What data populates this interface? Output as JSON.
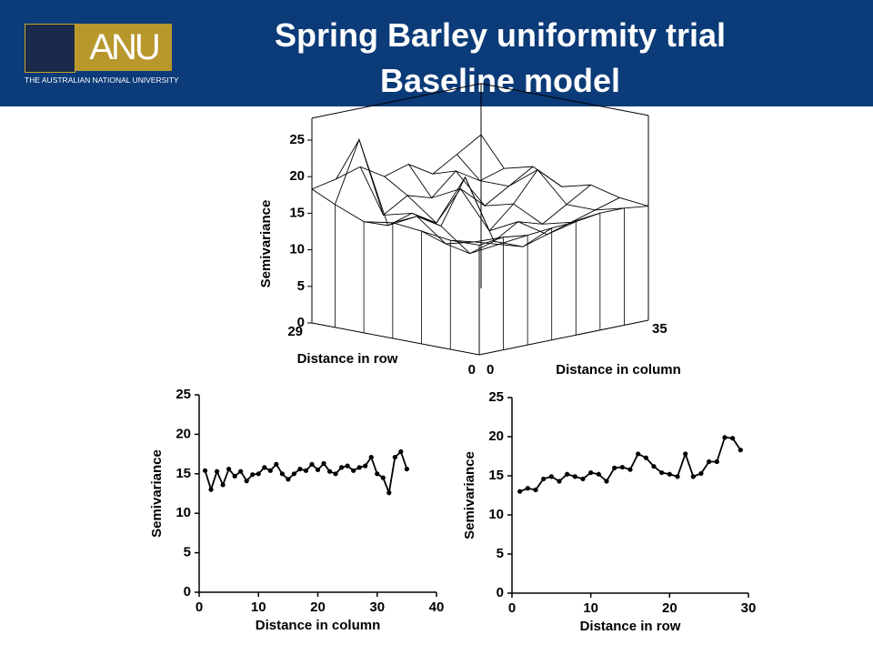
{
  "header": {
    "title": [
      "Spring Barley uniformity trial",
      "Baseline model"
    ],
    "logo_text": "ANU",
    "logo_subtitle": "THE AUSTRALIAN NATIONAL UNIVERSITY"
  },
  "chart_data": [
    {
      "type": "surface",
      "zlabel": "Semivariance",
      "xlabel": "Distance in row",
      "ylabel": "Distance in column",
      "x": [
        0,
        5,
        10,
        15,
        20,
        25,
        29
      ],
      "y": [
        0,
        5,
        10,
        15,
        20,
        25,
        30,
        35
      ],
      "values": [
        [
          15,
          15.4,
          15,
          15.3,
          15.5,
          16,
          16,
          15.6
        ],
        [
          14.9,
          14,
          13,
          12,
          13,
          14,
          15,
          16
        ],
        [
          15.4,
          13,
          11,
          12,
          14,
          13,
          15,
          17
        ],
        [
          15.8,
          16,
          14,
          20,
          12,
          15,
          19,
          16
        ],
        [
          15.2,
          14,
          15,
          13,
          17,
          14,
          16,
          18
        ],
        [
          16.8,
          25,
          14,
          16,
          15,
          18,
          16,
          17
        ],
        [
          18.3,
          19,
          20,
          18,
          19,
          17,
          19,
          21
        ]
      ],
      "xlim": [
        0,
        29
      ],
      "xticks": [
        0,
        29
      ],
      "ylim": [
        0,
        35
      ],
      "yticks": [
        0,
        35
      ],
      "zlim": [
        0,
        28
      ],
      "zticks": [
        0,
        5,
        10,
        15,
        20,
        25
      ],
      "color": "#000000"
    },
    {
      "type": "line",
      "xlabel": "Distance in column",
      "ylabel": "Semivariance",
      "x": [
        1,
        2,
        3,
        4,
        5,
        6,
        7,
        8,
        9,
        10,
        11,
        12,
        13,
        14,
        15,
        16,
        17,
        18,
        19,
        20,
        21,
        22,
        23,
        24,
        25,
        26,
        27,
        28,
        29,
        30,
        31,
        32,
        33,
        34,
        35
      ],
      "values": [
        15.4,
        13,
        15.3,
        13.6,
        15.6,
        14.7,
        15.3,
        14.1,
        14.9,
        15,
        15.8,
        15.4,
        16.2,
        15,
        14.3,
        15,
        15.6,
        15.4,
        16.2,
        15.5,
        16.3,
        15.3,
        15,
        15.8,
        16,
        15.4,
        15.8,
        16,
        17.1,
        15,
        14.5,
        12.6,
        17.1,
        17.8,
        15.6
      ],
      "xlim": [
        0,
        40
      ],
      "xticks": [
        0,
        10,
        20,
        30,
        40
      ],
      "ylim": [
        0,
        25
      ],
      "yticks": [
        0,
        5,
        10,
        15,
        20,
        25
      ],
      "color": "#000000"
    },
    {
      "type": "line",
      "xlabel": "Distance in row",
      "ylabel": "Semivariance",
      "x": [
        1,
        2,
        3,
        4,
        5,
        6,
        7,
        8,
        9,
        10,
        11,
        12,
        13,
        14,
        15,
        16,
        17,
        18,
        19,
        20,
        21,
        22,
        23,
        24,
        25,
        26,
        27,
        28,
        29
      ],
      "values": [
        13,
        13.4,
        13.2,
        14.6,
        14.9,
        14.3,
        15.2,
        14.9,
        14.6,
        15.4,
        15.2,
        14.3,
        16,
        16.1,
        15.8,
        17.8,
        17.3,
        16.2,
        15.4,
        15.2,
        14.9,
        17.8,
        14.9,
        15.3,
        16.8,
        16.8,
        19.9,
        19.8,
        18.3
      ],
      "xlim": [
        0,
        30
      ],
      "xticks": [
        0,
        10,
        20,
        30
      ],
      "ylim": [
        0,
        25
      ],
      "yticks": [
        0,
        5,
        10,
        15,
        20,
        25
      ],
      "color": "#000000"
    }
  ]
}
